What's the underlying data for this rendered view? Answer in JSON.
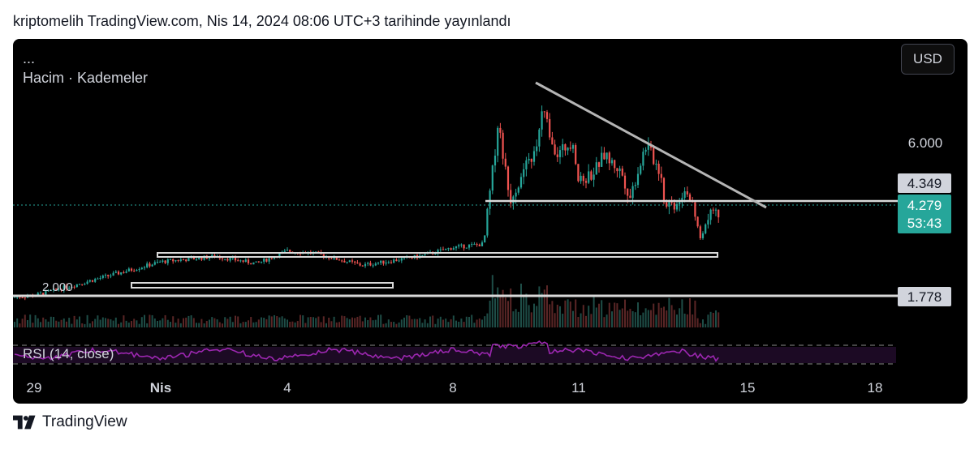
{
  "header": {
    "text": "kriptomelih TradingView.com, Nis 14, 2024 08:06 UTC+3 tarihinde yayınlandı"
  },
  "chart": {
    "ellipsis": "...",
    "indicator_title": "Hacim · Kademeler",
    "currency_button": "USD",
    "rsi_label": "RSI (14, close)",
    "price_ticks": [
      "6.000",
      "2.000"
    ],
    "price_tags": [
      {
        "value": "4.349",
        "style": "white"
      },
      {
        "value": "4.279",
        "style": "teal",
        "countdown": "53:43"
      },
      {
        "value": "1.778",
        "style": "white"
      }
    ],
    "date_ticks": [
      "29",
      "Nis",
      "4",
      "8",
      "11",
      "15",
      "18"
    ]
  },
  "chart_data": {
    "type": "candlestick",
    "symbol_currency": "USD",
    "current_price": 4.279,
    "bar_countdown": "53:43",
    "marked_levels": [
      4.349,
      1.778
    ],
    "x": [
      "29",
      "Nis",
      "4",
      "8",
      "11",
      "15",
      "18"
    ],
    "close_path": [
      {
        "x": "27",
        "y": 1.8
      },
      {
        "x": "29",
        "y": 1.85
      },
      {
        "x": "Nis",
        "y": 2.8
      },
      {
        "x": "4",
        "y": 3.1
      },
      {
        "x": "8",
        "y": 3.2
      },
      {
        "x": "9",
        "y": 6.7
      },
      {
        "x": "10",
        "y": 5.9
      },
      {
        "x": "11",
        "y": 5.0
      },
      {
        "x": "12",
        "y": 5.3
      },
      {
        "x": "13",
        "y": 4.5
      },
      {
        "x": "14",
        "y": 4.279
      }
    ],
    "rsi": {
      "period": 14,
      "source": "close"
    },
    "footer_brand": "TradingView"
  },
  "footer": {
    "brand": "TradingView"
  }
}
